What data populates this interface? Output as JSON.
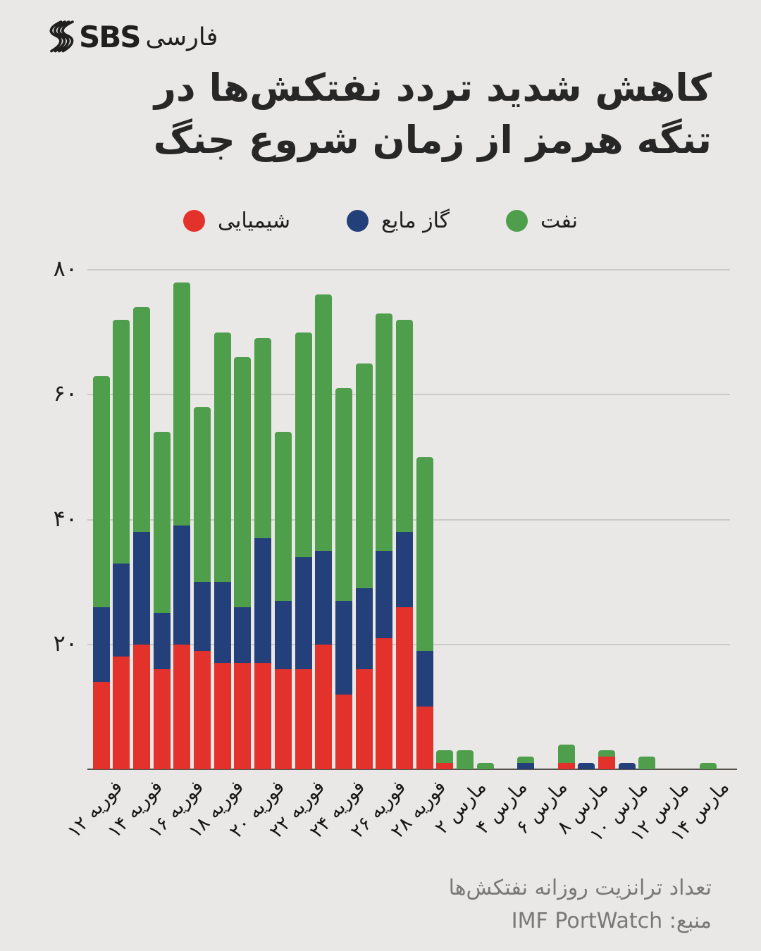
{
  "brand": {
    "wordmark": "SBS",
    "language": "فارسی"
  },
  "title": {
    "line1": "کاهش شدید تردد نفتکش‌ها در",
    "line2": "تنگه هرمز از زمان شروع جنگ"
  },
  "legend": {
    "chemical": "شیمیایی",
    "lpg": "گاز مایع",
    "oil": "نفت"
  },
  "colors": {
    "chemical": "#e3312b",
    "lpg": "#24407a",
    "oil": "#4f9e4c",
    "background": "#e9e8e6",
    "grid": "#cbcac7",
    "axis": "#56534f",
    "title_text": "#272727",
    "muted_text": "#7a7876"
  },
  "footer": {
    "note": "تعداد ترانزیت روزانه نفتکش‌ها",
    "source": "منبع: IMF PortWatch"
  },
  "chart_data": {
    "type": "bar",
    "stacked": true,
    "title": "کاهش شدید تردد نفتکش‌ها در تنگه هرمز از زمان شروع جنگ",
    "ylabel": "",
    "xlabel": "",
    "ylim": [
      0,
      80
    ],
    "grid": "horizontal",
    "legend_position": "top",
    "n_bars": 31,
    "x_tick_every": 2,
    "y_ticks": [
      {
        "label": "۸۰",
        "value": 80
      },
      {
        "label": "۶۰",
        "value": 60
      },
      {
        "label": "۴۰",
        "value": 40
      },
      {
        "label": "۲۰",
        "value": 20
      }
    ],
    "x_tick_labels": [
      "فوریه ۱۲",
      "فوریه ۱۴",
      "فوریه ۱۶",
      "فوریه ۱۸",
      "فوریه ۲۰",
      "فوریه ۲۲",
      "فوریه ۲۴",
      "فوریه ۲۶",
      "فوریه ۲۸",
      "مارس ۲",
      "مارس ۴",
      "مارس ۶",
      "مارس ۸",
      "مارس ۱۰",
      "مارس ۱۲",
      "مارس ۱۴"
    ],
    "series": [
      {
        "name": "شیمیایی",
        "color_key": "chemical",
        "values": [
          14,
          18,
          20,
          16,
          20,
          19,
          17,
          17,
          17,
          16,
          16,
          20,
          12,
          16,
          21,
          26,
          10,
          1,
          0,
          0,
          0,
          0,
          0,
          1,
          0,
          2,
          0,
          0,
          0,
          0,
          0
        ]
      },
      {
        "name": "گاز مایع",
        "color_key": "lpg",
        "values": [
          12,
          15,
          18,
          9,
          19,
          11,
          13,
          9,
          20,
          11,
          18,
          15,
          15,
          13,
          14,
          12,
          9,
          0,
          0,
          0,
          0,
          1,
          0,
          0,
          1,
          0,
          1,
          0,
          0,
          0,
          0
        ]
      },
      {
        "name": "نفت",
        "color_key": "oil",
        "values": [
          37,
          39,
          36,
          29,
          39,
          28,
          40,
          40,
          32,
          27,
          36,
          41,
          34,
          36,
          38,
          34,
          31,
          2,
          3,
          1,
          0,
          1,
          0,
          3,
          0,
          1,
          0,
          2,
          0,
          0,
          1
        ]
      }
    ]
  }
}
